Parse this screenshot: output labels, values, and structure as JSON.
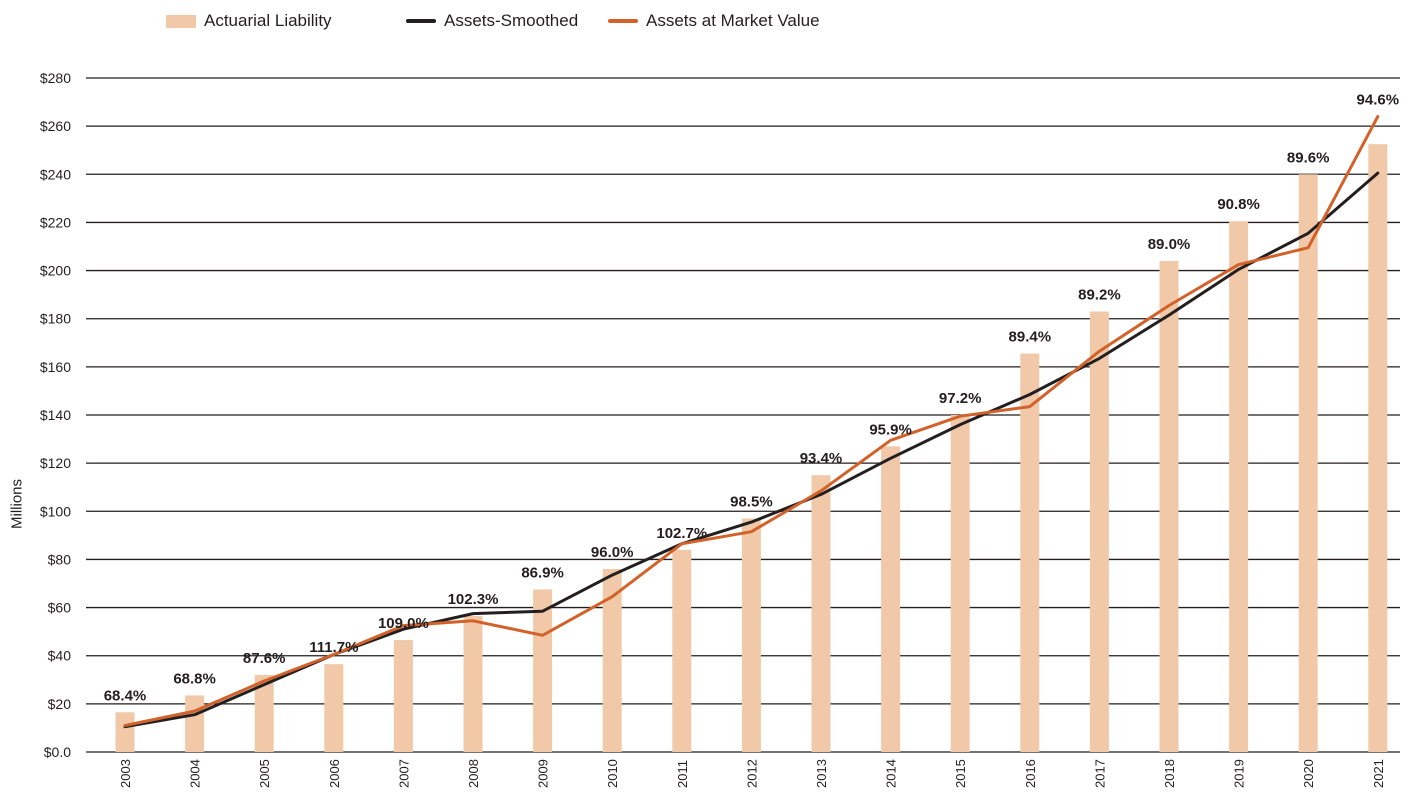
{
  "chart_data": {
    "type": "bar",
    "title": "",
    "xlabel": "",
    "ylabel": "Millions",
    "ylim": [
      0,
      280
    ],
    "grid": true,
    "legend_position": "top",
    "categories": [
      "2003",
      "2004",
      "2005",
      "2006",
      "2007",
      "2008",
      "2009",
      "2010",
      "2011",
      "2012",
      "2013",
      "2014",
      "2015",
      "2016",
      "2017",
      "2018",
      "2019",
      "2020",
      "2021"
    ],
    "y_ticks": [
      0,
      20,
      40,
      60,
      80,
      100,
      120,
      140,
      160,
      180,
      200,
      220,
      240,
      260,
      280
    ],
    "y_tick_labels": [
      "$0.0",
      "$20",
      "$40",
      "$60",
      "$80",
      "$100",
      "$120",
      "$140",
      "$160",
      "$180",
      "$200",
      "$220",
      "$240",
      "$260",
      "$280"
    ],
    "series": [
      {
        "name": "Actuarial Liability",
        "kind": "bar",
        "color": "#f2c9a8",
        "values": [
          16.5,
          23.5,
          32,
          36.5,
          46.5,
          56.5,
          67.5,
          76,
          84,
          97,
          115,
          127,
          140,
          165.5,
          183,
          204,
          220.5,
          240,
          252.5
        ]
      },
      {
        "name": "Assets-Smoothed",
        "kind": "line",
        "color": "#231f20",
        "values": [
          10.5,
          15.5,
          28,
          40.5,
          51,
          57.5,
          58.5,
          73.5,
          86.5,
          95.5,
          107,
          122,
          136,
          148.5,
          163.5,
          181.5,
          200.5,
          215.5,
          240.5
        ]
      },
      {
        "name": "Assets at Market Value",
        "kind": "line",
        "color": "#d2622a",
        "values": [
          11,
          17,
          29.5,
          40.5,
          52.5,
          54.5,
          48.5,
          64.5,
          86.5,
          91.5,
          108.5,
          129.5,
          139.5,
          143.5,
          166.5,
          185.5,
          202.5,
          209.5,
          264
        ]
      }
    ],
    "funded_ratio_labels": [
      "68.4%",
      "68.8%",
      "87.6%",
      "111.7%",
      "109.0%",
      "102.3%",
      "86.9%",
      "96.0%",
      "102.7%",
      "98.5%",
      "93.4%",
      "95.9%",
      "97.2%",
      "89.4%",
      "89.2%",
      "89.0%",
      "90.8%",
      "89.6%",
      "94.6%"
    ]
  }
}
